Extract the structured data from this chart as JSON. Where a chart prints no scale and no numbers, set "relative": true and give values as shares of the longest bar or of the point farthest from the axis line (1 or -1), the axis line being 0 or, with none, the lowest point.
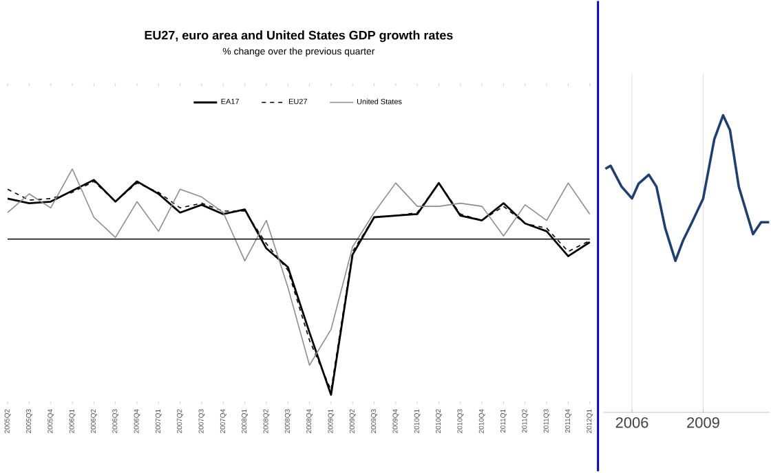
{
  "chart_data": [
    {
      "type": "line",
      "title": "EU27, euro area and United States GDP growth rates",
      "subtitle": "% change over the previous quarter",
      "relative": true,
      "legend": "top",
      "marker": "none",
      "categories": [
        "2005Q2",
        "2005Q3",
        "2005Q4",
        "2006Q1",
        "2006Q2",
        "2006Q3",
        "2006Q4",
        "2007Q1",
        "2007Q2",
        "2007Q3",
        "2007Q4",
        "2008Q1",
        "2008Q2",
        "2008Q3",
        "2008Q4",
        "2009Q1",
        "2009Q2",
        "2009Q3",
        "2009Q4",
        "2010Q1",
        "2010Q2",
        "2010Q3",
        "2010Q4",
        "2011Q1",
        "2011Q2",
        "2011Q3",
        "2011Q4",
        "2012Q1"
      ],
      "series": [
        {
          "name": "EA17",
          "color": "#000000",
          "line_style": "solid",
          "values": [
            0.26,
            0.23,
            0.24,
            0.31,
            0.38,
            0.24,
            0.37,
            0.29,
            0.17,
            0.22,
            0.16,
            0.19,
            -0.06,
            -0.18,
            -0.6,
            -1.0,
            -0.1,
            0.14,
            0.15,
            0.16,
            0.36,
            0.15,
            0.12,
            0.23,
            0.1,
            0.05,
            -0.11,
            -0.02
          ]
        },
        {
          "name": "EU27",
          "color": "#000000",
          "line_style": "dashed",
          "values": [
            0.32,
            0.25,
            0.26,
            0.3,
            0.37,
            0.24,
            0.36,
            0.3,
            0.2,
            0.23,
            0.18,
            0.18,
            -0.03,
            -0.2,
            -0.65,
            -0.97,
            -0.08,
            0.14,
            0.15,
            0.17,
            0.36,
            0.16,
            0.12,
            0.21,
            0.1,
            0.07,
            -0.08,
            -0.01
          ]
        },
        {
          "name": "United States",
          "color": "#8c8c8c",
          "line_style": "solid",
          "values": [
            0.17,
            0.29,
            0.2,
            0.45,
            0.14,
            0.01,
            0.24,
            0.05,
            0.32,
            0.27,
            0.17,
            -0.14,
            0.12,
            -0.31,
            -0.81,
            -0.58,
            -0.05,
            0.17,
            0.36,
            0.21,
            0.21,
            0.23,
            0.21,
            0.02,
            0.22,
            0.12,
            0.36,
            0.16
          ]
        }
      ]
    },
    {
      "type": "line",
      "relative": true,
      "grid": "x",
      "marker": "none",
      "xlim": [
        2004.8,
        2011.8
      ],
      "xticks": [
        2006,
        2009
      ],
      "x": [
        2004.88,
        2005.1,
        2005.56,
        2006.0,
        2006.28,
        2006.71,
        2007.03,
        2007.4,
        2007.83,
        2008.16,
        2008.53,
        2009.0,
        2009.47,
        2009.84,
        2010.13,
        2010.5,
        2011.1,
        2011.44,
        2011.78
      ],
      "series": [
        {
          "color": "#1f3f6e",
          "values": [
            0.82,
            0.83,
            0.76,
            0.72,
            0.77,
            0.8,
            0.76,
            0.62,
            0.51,
            0.58,
            0.64,
            0.72,
            0.92,
            1,
            0.95,
            0.76,
            0.6,
            0.64,
            0.64
          ]
        }
      ]
    }
  ]
}
